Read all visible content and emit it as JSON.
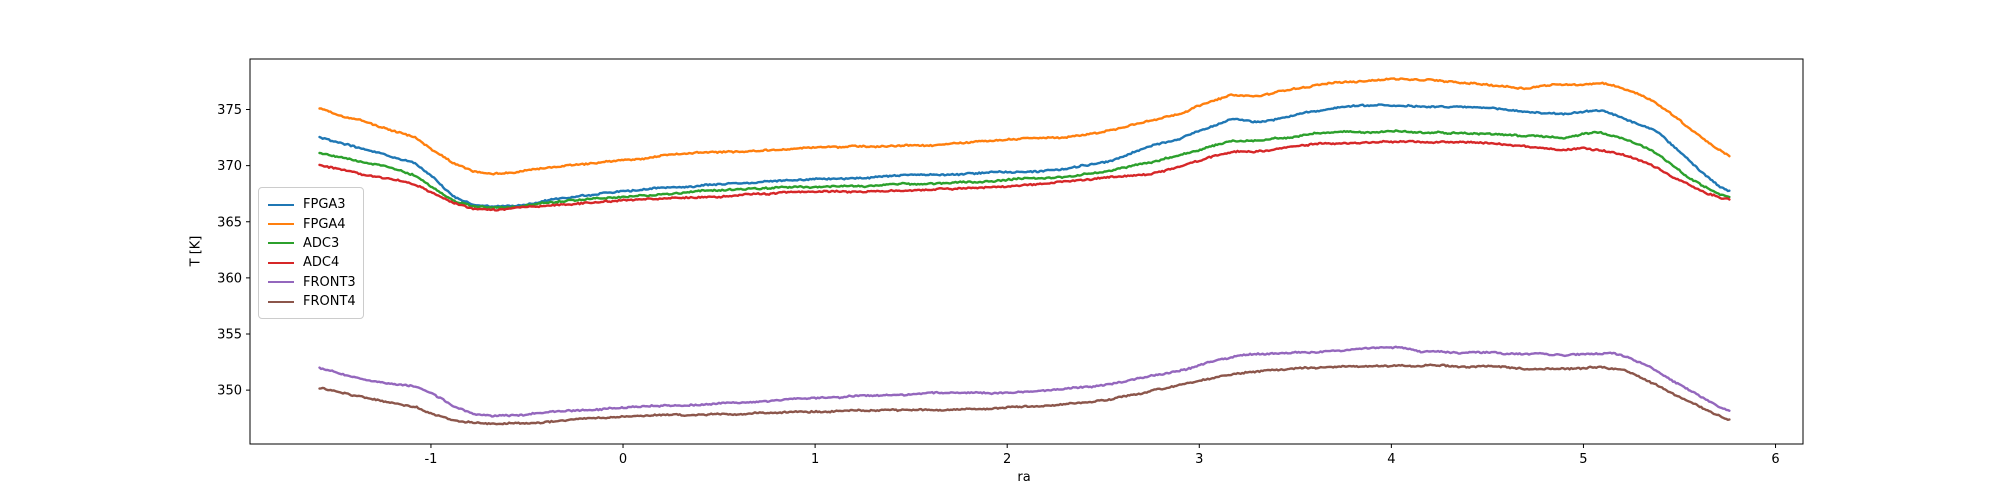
{
  "figure": {
    "background": "#ffffff",
    "text_color": "#000000",
    "spine_color": "#000000"
  },
  "chart_data": {
    "type": "line",
    "title": "",
    "xlabel": "ra",
    "ylabel": "T [K]",
    "xlim": [
      -1.942,
      6.143
    ],
    "ylim": [
      345.2,
      379.5
    ],
    "x_ticks": [
      -1,
      0,
      1,
      2,
      3,
      4,
      5,
      6
    ],
    "y_ticks": [
      350,
      355,
      360,
      365,
      370,
      375
    ],
    "grid": false,
    "legend_position": "upper-left-inside",
    "line_noise_amplitude_K": 0.11,
    "series": [
      {
        "name": "FPGA3",
        "color": "#1f77b4",
        "points": [
          [
            -1.58,
            372.5
          ],
          [
            -1.45,
            371.9
          ],
          [
            -1.32,
            371.3
          ],
          [
            -1.2,
            370.8
          ],
          [
            -1.08,
            370.2
          ],
          [
            -0.98,
            368.9
          ],
          [
            -0.88,
            367.3
          ],
          [
            -0.78,
            366.6
          ],
          [
            -0.68,
            366.4
          ],
          [
            -0.55,
            366.5
          ],
          [
            -0.4,
            366.9
          ],
          [
            -0.25,
            367.3
          ],
          [
            -0.1,
            367.6
          ],
          [
            0.1,
            367.9
          ],
          [
            0.35,
            368.2
          ],
          [
            0.6,
            368.5
          ],
          [
            0.85,
            368.8
          ],
          [
            1.1,
            368.9
          ],
          [
            1.4,
            369.0
          ],
          [
            1.7,
            369.2
          ],
          [
            2.0,
            369.4
          ],
          [
            2.3,
            369.7
          ],
          [
            2.55,
            370.5
          ],
          [
            2.74,
            371.8
          ],
          [
            2.9,
            372.5
          ],
          [
            3.05,
            373.4
          ],
          [
            3.17,
            374.2
          ],
          [
            3.3,
            374.0
          ],
          [
            3.45,
            374.4
          ],
          [
            3.6,
            374.9
          ],
          [
            3.8,
            375.3
          ],
          [
            3.95,
            375.4
          ],
          [
            4.1,
            375.3
          ],
          [
            4.3,
            375.2
          ],
          [
            4.55,
            375.0
          ],
          [
            4.75,
            374.7
          ],
          [
            4.9,
            374.6
          ],
          [
            5.0,
            374.8
          ],
          [
            5.1,
            374.9
          ],
          [
            5.2,
            374.3
          ],
          [
            5.3,
            373.6
          ],
          [
            5.38,
            373.0
          ],
          [
            5.45,
            372.0
          ],
          [
            5.55,
            370.4
          ],
          [
            5.65,
            368.9
          ],
          [
            5.72,
            368.0
          ],
          [
            5.76,
            367.7
          ]
        ]
      },
      {
        "name": "FPGA4",
        "color": "#ff7f0e",
        "points": [
          [
            -1.58,
            375.1
          ],
          [
            -1.45,
            374.3
          ],
          [
            -1.32,
            373.7
          ],
          [
            -1.2,
            373.0
          ],
          [
            -1.08,
            372.4
          ],
          [
            -0.98,
            371.2
          ],
          [
            -0.88,
            370.1
          ],
          [
            -0.78,
            369.4
          ],
          [
            -0.68,
            369.3
          ],
          [
            -0.55,
            369.4
          ],
          [
            -0.4,
            369.7
          ],
          [
            -0.25,
            370.0
          ],
          [
            -0.1,
            370.3
          ],
          [
            0.1,
            370.6
          ],
          [
            0.35,
            371.1
          ],
          [
            0.6,
            371.3
          ],
          [
            0.85,
            371.5
          ],
          [
            1.1,
            371.6
          ],
          [
            1.4,
            371.7
          ],
          [
            1.7,
            371.9
          ],
          [
            2.0,
            372.2
          ],
          [
            2.3,
            372.5
          ],
          [
            2.55,
            373.2
          ],
          [
            2.74,
            374.0
          ],
          [
            2.9,
            374.7
          ],
          [
            3.05,
            375.7
          ],
          [
            3.17,
            376.4
          ],
          [
            3.3,
            376.2
          ],
          [
            3.45,
            376.7
          ],
          [
            3.6,
            377.1
          ],
          [
            3.8,
            377.5
          ],
          [
            4.0,
            377.8
          ],
          [
            4.15,
            377.7
          ],
          [
            4.35,
            377.5
          ],
          [
            4.55,
            377.2
          ],
          [
            4.7,
            377.0
          ],
          [
            4.85,
            377.3
          ],
          [
            5.0,
            377.3
          ],
          [
            5.1,
            377.4
          ],
          [
            5.2,
            376.9
          ],
          [
            5.3,
            376.3
          ],
          [
            5.38,
            375.6
          ],
          [
            5.45,
            374.7
          ],
          [
            5.55,
            373.3
          ],
          [
            5.65,
            372.0
          ],
          [
            5.72,
            371.2
          ],
          [
            5.76,
            370.8
          ]
        ]
      },
      {
        "name": "ADC3",
        "color": "#2ca02c",
        "points": [
          [
            -1.58,
            371.1
          ],
          [
            -1.45,
            370.6
          ],
          [
            -1.32,
            370.1
          ],
          [
            -1.2,
            369.7
          ],
          [
            -1.08,
            369.1
          ],
          [
            -0.98,
            368.0
          ],
          [
            -0.88,
            366.9
          ],
          [
            -0.78,
            366.4
          ],
          [
            -0.68,
            366.3
          ],
          [
            -0.55,
            366.4
          ],
          [
            -0.4,
            366.7
          ],
          [
            -0.25,
            366.9
          ],
          [
            -0.1,
            367.1
          ],
          [
            0.1,
            367.3
          ],
          [
            0.35,
            367.6
          ],
          [
            0.6,
            367.8
          ],
          [
            0.85,
            368.0
          ],
          [
            1.1,
            368.1
          ],
          [
            1.4,
            368.2
          ],
          [
            1.7,
            368.4
          ],
          [
            2.0,
            368.6
          ],
          [
            2.3,
            368.9
          ],
          [
            2.55,
            369.5
          ],
          [
            2.74,
            370.2
          ],
          [
            2.9,
            370.9
          ],
          [
            3.05,
            371.7
          ],
          [
            3.17,
            372.2
          ],
          [
            3.3,
            372.2
          ],
          [
            3.45,
            372.5
          ],
          [
            3.6,
            372.8
          ],
          [
            3.8,
            373.1
          ],
          [
            4.0,
            373.1
          ],
          [
            4.2,
            373.0
          ],
          [
            4.45,
            373.0
          ],
          [
            4.65,
            372.8
          ],
          [
            4.8,
            372.6
          ],
          [
            4.9,
            372.5
          ],
          [
            5.0,
            372.9
          ],
          [
            5.08,
            373.0
          ],
          [
            5.2,
            372.5
          ],
          [
            5.3,
            371.8
          ],
          [
            5.38,
            371.1
          ],
          [
            5.45,
            370.2
          ],
          [
            5.55,
            368.9
          ],
          [
            5.65,
            367.9
          ],
          [
            5.72,
            367.3
          ],
          [
            5.76,
            367.1
          ]
        ]
      },
      {
        "name": "ADC4",
        "color": "#d62728",
        "points": [
          [
            -1.58,
            370.1
          ],
          [
            -1.45,
            369.6
          ],
          [
            -1.32,
            369.1
          ],
          [
            -1.2,
            368.7
          ],
          [
            -1.08,
            368.2
          ],
          [
            -0.98,
            367.4
          ],
          [
            -0.88,
            366.6
          ],
          [
            -0.78,
            366.1
          ],
          [
            -0.68,
            366.0
          ],
          [
            -0.55,
            366.1
          ],
          [
            -0.4,
            366.4
          ],
          [
            -0.25,
            366.6
          ],
          [
            -0.1,
            366.8
          ],
          [
            0.1,
            367.0
          ],
          [
            0.35,
            367.2
          ],
          [
            0.6,
            367.4
          ],
          [
            0.85,
            367.6
          ],
          [
            1.1,
            367.7
          ],
          [
            1.4,
            367.8
          ],
          [
            1.7,
            368.0
          ],
          [
            2.0,
            368.2
          ],
          [
            2.3,
            368.5
          ],
          [
            2.55,
            368.9
          ],
          [
            2.74,
            369.2
          ],
          [
            2.9,
            369.9
          ],
          [
            3.05,
            370.8
          ],
          [
            3.17,
            371.3
          ],
          [
            3.3,
            371.3
          ],
          [
            3.45,
            371.6
          ],
          [
            3.6,
            371.9
          ],
          [
            3.8,
            372.1
          ],
          [
            4.0,
            372.2
          ],
          [
            4.2,
            372.1
          ],
          [
            4.45,
            372.0
          ],
          [
            4.65,
            371.8
          ],
          [
            4.8,
            371.6
          ],
          [
            4.9,
            371.4
          ],
          [
            5.0,
            371.6
          ],
          [
            5.08,
            371.5
          ],
          [
            5.2,
            371.1
          ],
          [
            5.3,
            370.5
          ],
          [
            5.38,
            369.9
          ],
          [
            5.45,
            369.2
          ],
          [
            5.55,
            368.3
          ],
          [
            5.65,
            367.5
          ],
          [
            5.72,
            367.1
          ],
          [
            5.76,
            367.0
          ]
        ]
      },
      {
        "name": "FRONT3",
        "color": "#9467bd",
        "points": [
          [
            -1.58,
            352.0
          ],
          [
            -1.45,
            351.4
          ],
          [
            -1.32,
            350.9
          ],
          [
            -1.2,
            350.6
          ],
          [
            -1.08,
            350.3
          ],
          [
            -0.98,
            349.6
          ],
          [
            -0.88,
            348.6
          ],
          [
            -0.78,
            347.9
          ],
          [
            -0.68,
            347.7
          ],
          [
            -0.55,
            347.7
          ],
          [
            -0.4,
            347.9
          ],
          [
            -0.25,
            348.1
          ],
          [
            -0.1,
            348.3
          ],
          [
            0.15,
            348.6
          ],
          [
            0.45,
            348.8
          ],
          [
            0.75,
            349.1
          ],
          [
            1.05,
            349.4
          ],
          [
            1.35,
            349.6
          ],
          [
            1.65,
            349.7
          ],
          [
            1.95,
            349.7
          ],
          [
            2.2,
            350.0
          ],
          [
            2.45,
            350.4
          ],
          [
            2.65,
            350.9
          ],
          [
            2.8,
            351.4
          ],
          [
            2.95,
            352.0
          ],
          [
            3.1,
            352.7
          ],
          [
            3.2,
            353.0
          ],
          [
            3.4,
            353.2
          ],
          [
            3.6,
            353.3
          ],
          [
            3.8,
            353.5
          ],
          [
            3.95,
            353.7
          ],
          [
            4.05,
            353.8
          ],
          [
            4.15,
            353.5
          ],
          [
            4.35,
            353.3
          ],
          [
            4.55,
            353.4
          ],
          [
            4.75,
            353.3
          ],
          [
            4.9,
            353.2
          ],
          [
            5.05,
            353.3
          ],
          [
            5.15,
            353.3
          ],
          [
            5.25,
            352.8
          ],
          [
            5.35,
            352.0
          ],
          [
            5.45,
            351.1
          ],
          [
            5.55,
            350.1
          ],
          [
            5.65,
            349.1
          ],
          [
            5.72,
            348.5
          ],
          [
            5.76,
            348.2
          ]
        ]
      },
      {
        "name": "FRONT4",
        "color": "#8c564b",
        "points": [
          [
            -1.58,
            350.2
          ],
          [
            -1.45,
            349.7
          ],
          [
            -1.32,
            349.1
          ],
          [
            -1.2,
            348.7
          ],
          [
            -1.08,
            348.4
          ],
          [
            -0.98,
            347.8
          ],
          [
            -0.88,
            347.3
          ],
          [
            -0.78,
            347.0
          ],
          [
            -0.65,
            346.9
          ],
          [
            -0.5,
            347.0
          ],
          [
            -0.35,
            347.2
          ],
          [
            -0.15,
            347.4
          ],
          [
            0.1,
            347.6
          ],
          [
            0.45,
            347.8
          ],
          [
            0.8,
            348.0
          ],
          [
            1.15,
            348.1
          ],
          [
            1.5,
            348.2
          ],
          [
            1.85,
            348.4
          ],
          [
            2.15,
            348.6
          ],
          [
            2.45,
            349.0
          ],
          [
            2.65,
            349.5
          ],
          [
            2.8,
            350.1
          ],
          [
            2.95,
            350.7
          ],
          [
            3.1,
            351.2
          ],
          [
            3.2,
            351.5
          ],
          [
            3.4,
            351.8
          ],
          [
            3.6,
            352.0
          ],
          [
            3.8,
            352.1
          ],
          [
            4.0,
            352.1
          ],
          [
            4.2,
            352.2
          ],
          [
            4.4,
            352.1
          ],
          [
            4.55,
            352.1
          ],
          [
            4.7,
            351.8
          ],
          [
            4.85,
            351.9
          ],
          [
            5.0,
            351.9
          ],
          [
            5.1,
            352.0
          ],
          [
            5.2,
            351.8
          ],
          [
            5.3,
            351.1
          ],
          [
            5.4,
            350.4
          ],
          [
            5.5,
            349.5
          ],
          [
            5.6,
            348.6
          ],
          [
            5.7,
            347.8
          ],
          [
            5.76,
            347.4
          ]
        ]
      }
    ]
  }
}
